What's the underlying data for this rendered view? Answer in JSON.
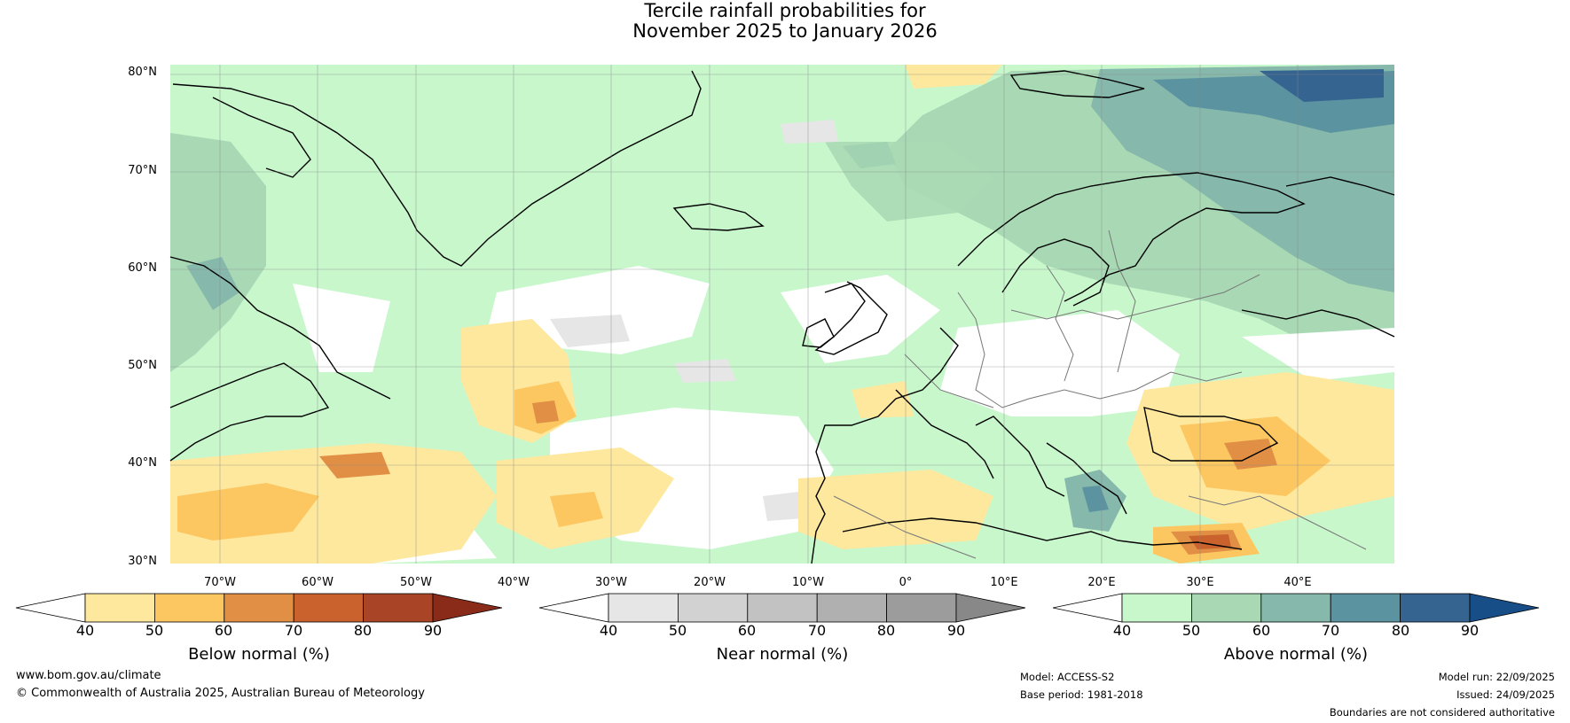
{
  "title": {
    "line1": "Tercile rainfall probabilities for",
    "line2": "November 2025 to January 2026"
  },
  "map": {
    "lat_labels": [
      "80°N",
      "70°N",
      "60°N",
      "50°N",
      "40°N",
      "30°N"
    ],
    "lon_labels": [
      "70°W",
      "60°W",
      "50°W",
      "40°W",
      "30°W",
      "20°W",
      "10°W",
      "0°",
      "10°E",
      "20°E",
      "30°E",
      "40°E"
    ]
  },
  "colorbars": [
    {
      "label": "Below normal (%)",
      "ticks": [
        "40",
        "50",
        "60",
        "70",
        "80",
        "90"
      ],
      "colors": [
        "#ffffff",
        "#fee89e",
        "#fcc761",
        "#e08f45",
        "#c9622d",
        "#a94526",
        "#8a2a18"
      ]
    },
    {
      "label": "Near normal (%)",
      "ticks": [
        "40",
        "50",
        "60",
        "70",
        "80",
        "90"
      ],
      "colors": [
        "#ffffff",
        "#e6e6e6",
        "#d2d2d2",
        "#c2c2c2",
        "#b0b0b0",
        "#9c9c9c",
        "#888888"
      ]
    },
    {
      "label": "Above normal (%)",
      "ticks": [
        "40",
        "50",
        "60",
        "70",
        "80",
        "90"
      ],
      "colors": [
        "#ffffff",
        "#c8f7cc",
        "#a8d9b4",
        "#86b8ab",
        "#5c93a0",
        "#356490",
        "#174e87"
      ]
    }
  ],
  "footer": {
    "url": "www.bom.gov.au/climate",
    "copyright": "© Commonwealth of Australia 2025, Australian Bureau of Meteorology",
    "model": "Model: ACCESS-S2",
    "base_period": "Base period: 1981-2018",
    "model_run": "Model run: 22/09/2025",
    "issued": "Issued: 24/09/2025",
    "disclaimer": "Boundaries are not considered authoritative"
  }
}
